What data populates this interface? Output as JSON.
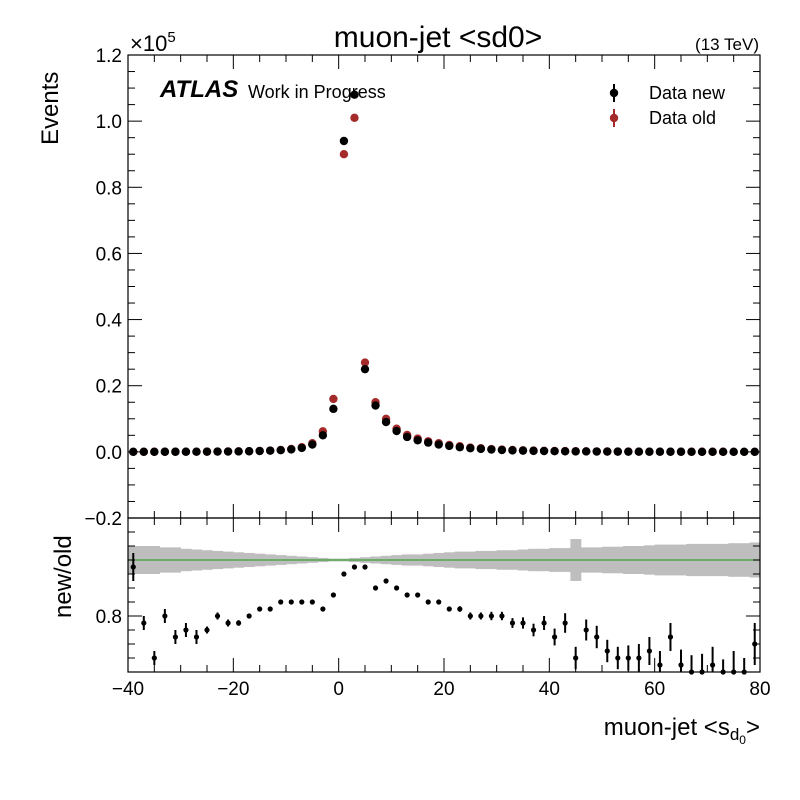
{
  "chart_data": {
    "type": "scatter",
    "title": "muon-jet <sd0>",
    "energy_label": "(13 TeV)",
    "experiment_label": "ATLAS",
    "status_label": "Work in Progress",
    "xlabel": "muon-jet <s",
    "xlabel_sub": "d",
    "xlabel_subsub": "0",
    "xlabel_close": ">",
    "ylabel": "Events",
    "ratio_ylabel": "new/old",
    "y_multiplier": "×10",
    "y_multiplier_exp": "5",
    "xlim": [
      -40,
      80
    ],
    "ylim": [
      -0.2,
      1.2
    ],
    "ratio_ylim": [
      0.72,
      0.94
    ],
    "x_ticks": [
      -40,
      -20,
      0,
      20,
      40,
      60,
      80
    ],
    "x_tick_labels": [
      "−40",
      "−20",
      "0",
      "20",
      "40",
      "60",
      "80"
    ],
    "y_ticks": [
      -0.2,
      0.0,
      0.2,
      0.4,
      0.6,
      0.8,
      1.0,
      1.2
    ],
    "y_tick_labels": [
      "−0.2",
      "0.0",
      "0.2",
      "0.4",
      "0.6",
      "0.8",
      "1.0",
      "1.2"
    ],
    "ratio_y_ticks": [
      0.8
    ],
    "ratio_y_tick_labels": [
      "0.8"
    ],
    "legend_position": "top-right",
    "colors": {
      "data_new": "#000000",
      "data_old": "#a52a2a",
      "band": "#bebebe",
      "reference_line": "#3aa335"
    },
    "series": [
      {
        "name": "Data new",
        "x": [
          -39,
          -37,
          -35,
          -33,
          -31,
          -29,
          -27,
          -25,
          -23,
          -21,
          -19,
          -17,
          -15,
          -13,
          -11,
          -9,
          -7,
          -5,
          -3,
          -1,
          1,
          3,
          5,
          7,
          9,
          11,
          13,
          15,
          17,
          19,
          21,
          23,
          25,
          27,
          29,
          31,
          33,
          35,
          37,
          39,
          41,
          43,
          45,
          47,
          49,
          51,
          53,
          55,
          57,
          59,
          61,
          63,
          65,
          67,
          69,
          71,
          73,
          75,
          77,
          79
        ],
        "y": [
          0.0002,
          0.0002,
          0.0002,
          0.0003,
          0.0003,
          0.0004,
          0.0005,
          0.0006,
          0.0008,
          0.001,
          0.0013,
          0.0018,
          0.0025,
          0.0035,
          0.005,
          0.0075,
          0.012,
          0.022,
          0.05,
          0.13,
          0.94,
          1.08,
          0.25,
          0.14,
          0.09,
          0.063,
          0.045,
          0.035,
          0.028,
          0.022,
          0.018,
          0.014,
          0.011,
          0.009,
          0.007,
          0.0055,
          0.0045,
          0.0037,
          0.003,
          0.0025,
          0.002,
          0.0017,
          0.0014,
          0.0012,
          0.001,
          0.0008,
          0.0007,
          0.0006,
          0.0005,
          0.0004,
          0.0004,
          0.0003,
          0.0003,
          0.0002,
          0.0002,
          0.0002,
          0.0002,
          0.0001,
          0.0001,
          0.0001
        ]
      },
      {
        "name": "Data old",
        "x": [
          -39,
          -37,
          -35,
          -33,
          -31,
          -29,
          -27,
          -25,
          -23,
          -21,
          -19,
          -17,
          -15,
          -13,
          -11,
          -9,
          -7,
          -5,
          -3,
          -1,
          1,
          3,
          5,
          7,
          9,
          11,
          13,
          15,
          17,
          19,
          21,
          23,
          25,
          27,
          29,
          31,
          33,
          35,
          37,
          39,
          41,
          43,
          45,
          47,
          49,
          51,
          53,
          55,
          57,
          59,
          61,
          63,
          65,
          67,
          69,
          71,
          73,
          75,
          77,
          79
        ],
        "y": [
          0.0002,
          0.0003,
          0.0003,
          0.0003,
          0.0004,
          0.0005,
          0.0006,
          0.0007,
          0.0009,
          0.0012,
          0.0016,
          0.0021,
          0.0029,
          0.004,
          0.0058,
          0.0087,
          0.014,
          0.026,
          0.062,
          0.16,
          0.9,
          1.01,
          0.27,
          0.15,
          0.1,
          0.07,
          0.051,
          0.04,
          0.032,
          0.026,
          0.021,
          0.017,
          0.013,
          0.011,
          0.0085,
          0.0068,
          0.0056,
          0.0046,
          0.0038,
          0.0032,
          0.0026,
          0.0022,
          0.0019,
          0.0016,
          0.0014,
          0.0011,
          0.001,
          0.0008,
          0.0007,
          0.0006,
          0.0005,
          0.0005,
          0.0004,
          0.0004,
          0.0003,
          0.0003,
          0.0003,
          0.0002,
          0.0002,
          0.0002
        ]
      }
    ],
    "ratio": {
      "x": [
        -39,
        -37,
        -35,
        -33,
        -31,
        -29,
        -27,
        -25,
        -23,
        -21,
        -19,
        -17,
        -15,
        -13,
        -11,
        -9,
        -7,
        -5,
        -3,
        -1,
        1,
        3,
        5,
        7,
        9,
        11,
        13,
        15,
        17,
        19,
        21,
        23,
        25,
        27,
        29,
        31,
        33,
        35,
        37,
        39,
        41,
        43,
        45,
        47,
        49,
        51,
        53,
        55,
        57,
        59,
        61,
        63,
        65,
        67,
        69,
        71,
        73,
        75,
        77,
        79
      ],
      "y": [
        0.87,
        0.79,
        0.74,
        0.8,
        0.77,
        0.78,
        0.77,
        0.78,
        0.8,
        0.79,
        0.79,
        0.8,
        0.81,
        0.81,
        0.82,
        0.82,
        0.82,
        0.82,
        0.81,
        0.83,
        0.86,
        0.87,
        0.87,
        0.84,
        0.85,
        0.84,
        0.83,
        0.83,
        0.82,
        0.82,
        0.81,
        0.81,
        0.8,
        0.8,
        0.8,
        0.8,
        0.79,
        0.79,
        0.78,
        0.79,
        0.77,
        0.79,
        0.74,
        0.78,
        0.77,
        0.75,
        0.74,
        0.74,
        0.74,
        0.75,
        0.73,
        0.77,
        0.73,
        0.72,
        0.72,
        0.73,
        0.71,
        0.72,
        0.71,
        0.76
      ],
      "yerr": [
        0.02,
        0.01,
        0.01,
        0.01,
        0.01,
        0.01,
        0.01,
        0.005,
        0.005,
        0.005,
        0.004,
        0.003,
        0.003,
        0.002,
        0.002,
        0.002,
        0.001,
        0.001,
        0.001,
        0.001,
        0.001,
        0.001,
        0.001,
        0.001,
        0.001,
        0.002,
        0.002,
        0.002,
        0.003,
        0.003,
        0.003,
        0.004,
        0.005,
        0.005,
        0.006,
        0.006,
        0.007,
        0.008,
        0.009,
        0.01,
        0.012,
        0.014,
        0.016,
        0.015,
        0.016,
        0.016,
        0.016,
        0.018,
        0.02,
        0.02,
        0.02,
        0.02,
        0.022,
        0.024,
        0.026,
        0.026,
        0.028,
        0.03,
        0.03,
        0.03
      ],
      "band_half_width": [
        0.02,
        0.02,
        0.02,
        0.018,
        0.018,
        0.016,
        0.015,
        0.014,
        0.013,
        0.012,
        0.011,
        0.01,
        0.009,
        0.008,
        0.007,
        0.006,
        0.005,
        0.004,
        0.003,
        0.002,
        0.002,
        0.003,
        0.004,
        0.005,
        0.006,
        0.007,
        0.008,
        0.008,
        0.009,
        0.01,
        0.011,
        0.012,
        0.012,
        0.013,
        0.013,
        0.014,
        0.014,
        0.015,
        0.016,
        0.016,
        0.017,
        0.017,
        0.03,
        0.018,
        0.018,
        0.019,
        0.019,
        0.02,
        0.02,
        0.021,
        0.022,
        0.022,
        0.022,
        0.023,
        0.023,
        0.023,
        0.023,
        0.024,
        0.024,
        0.025
      ],
      "reference": 0.88
    }
  }
}
